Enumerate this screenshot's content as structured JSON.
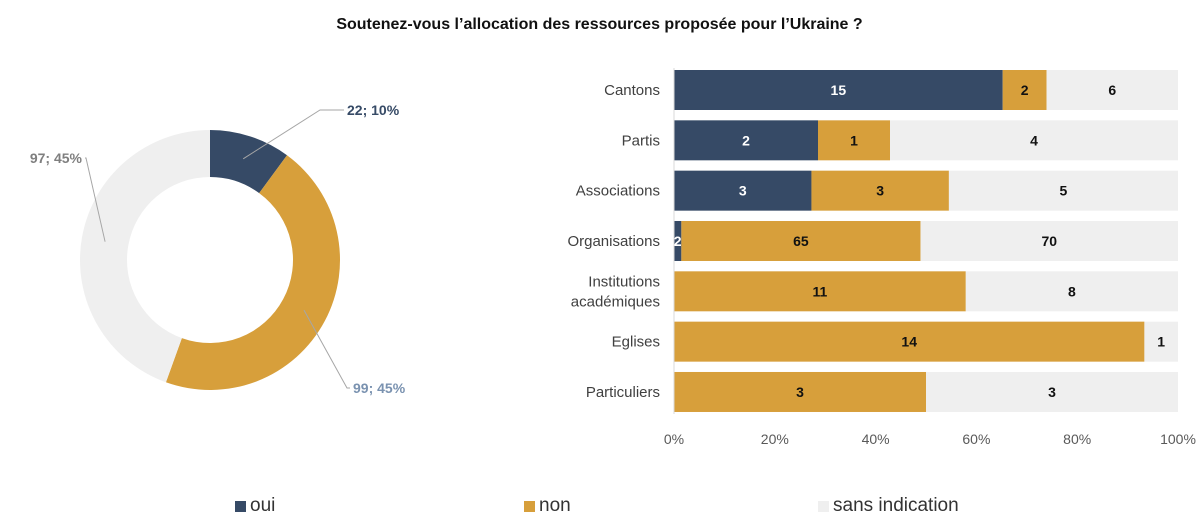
{
  "chart_data": [
    {
      "type": "pie",
      "title": "Soutenez-vous l’allocation des ressources proposée pour l’Ukraine ?",
      "style": "donut",
      "slices": [
        {
          "category": "oui",
          "value": 22,
          "label": "22; 10%",
          "color": "#364a66",
          "label_color": "#364a66"
        },
        {
          "category": "non",
          "value": 99,
          "label": "99; 45%",
          "color": "#d79f3b",
          "label_color": "#7a92b0"
        },
        {
          "category": "sans indication",
          "value": 97,
          "label": "97; 45%",
          "color": "#efefef",
          "label_color": "#7f7f7f"
        }
      ]
    },
    {
      "type": "bar",
      "orientation": "horizontal",
      "stacked": "percent",
      "categories": [
        "Cantons",
        "Partis",
        "Associations",
        "Organisations",
        "Institutions académiques",
        "Eglises",
        "Particuliers"
      ],
      "category_lines": [
        [
          "Cantons"
        ],
        [
          "Partis"
        ],
        [
          "Associations"
        ],
        [
          "Organisations"
        ],
        [
          "Institutions",
          "académiques"
        ],
        [
          "Eglises"
        ],
        [
          "Particuliers"
        ]
      ],
      "series": [
        {
          "name": "oui",
          "color": "#364a66",
          "values": [
            15,
            2,
            3,
            2,
            0,
            0,
            0
          ],
          "labels": [
            "15",
            "2",
            "3",
            "2",
            "",
            "",
            ""
          ]
        },
        {
          "name": "non",
          "color": "#d79f3b",
          "values": [
            2,
            1,
            3,
            65,
            11,
            14,
            3
          ],
          "labels": [
            "2",
            "1",
            "3",
            "65",
            "11",
            "14",
            "3"
          ]
        },
        {
          "name": "sans indication",
          "color": "#efefef",
          "values": [
            6,
            4,
            5,
            70,
            8,
            1,
            3
          ],
          "labels": [
            "6",
            "4",
            "5",
            "70",
            "8",
            "1",
            "3"
          ]
        }
      ],
      "xlim": [
        0,
        100
      ],
      "xticks": [
        "0%",
        "20%",
        "40%",
        "60%",
        "80%",
        "100%"
      ],
      "grid": false,
      "legend": "bottom"
    }
  ],
  "legend": [
    {
      "label": "oui",
      "color": "#364a66"
    },
    {
      "label": "non",
      "color": "#d79f3b"
    },
    {
      "label": "sans indication",
      "color": "#efefef"
    }
  ]
}
